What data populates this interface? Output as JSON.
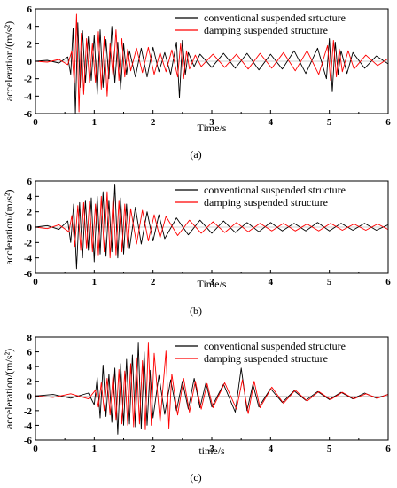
{
  "colors": {
    "conventional": "#000000",
    "damping": "#ff0000",
    "axis": "#000000",
    "background": "#ffffff"
  },
  "chart_data": [
    {
      "type": "line",
      "panel_label": "(a)",
      "xlabel": "Time/s",
      "ylabel": "acceleration/(m/s²)",
      "xlim": [
        0,
        6
      ],
      "ylim": [
        -6,
        6
      ],
      "x_ticks": [
        0,
        1,
        2,
        3,
        4,
        5,
        6
      ],
      "y_ticks": [
        -6,
        -4,
        -2,
        0,
        2,
        4,
        6
      ],
      "legend_position": "top-right",
      "series": [
        {
          "name": "conventional suspended srtucture",
          "color": "#000000",
          "x": [
            0,
            0.2,
            0.4,
            0.55,
            0.6,
            0.64,
            0.68,
            0.72,
            0.76,
            0.8,
            0.85,
            0.9,
            0.95,
            1.0,
            1.05,
            1.1,
            1.15,
            1.2,
            1.25,
            1.3,
            1.35,
            1.4,
            1.45,
            1.5,
            1.55,
            1.6,
            1.7,
            1.8,
            1.9,
            2.0,
            2.1,
            2.2,
            2.3,
            2.4,
            2.45,
            2.5,
            2.55,
            2.6,
            2.7,
            2.8,
            3.0,
            3.2,
            3.4,
            3.6,
            3.8,
            4.0,
            4.2,
            4.4,
            4.6,
            4.8,
            4.95,
            5.0,
            5.05,
            5.1,
            5.15,
            5.2,
            5.3,
            5.4,
            5.6,
            5.8,
            6.0
          ],
          "y": [
            0,
            0.1,
            -0.2,
            0.5,
            -1.5,
            3.8,
            -6.0,
            4.4,
            -3.0,
            3.5,
            -2.5,
            2.8,
            -2.2,
            3.0,
            -3.8,
            3.6,
            -3.0,
            2.5,
            -2.0,
            4.0,
            -2.5,
            2.2,
            -3.2,
            2.0,
            -1.5,
            1.2,
            -1.8,
            1.5,
            -1.8,
            1.6,
            -1.2,
            1.0,
            -1.5,
            2.2,
            -4.2,
            2.4,
            -1.5,
            1.0,
            -0.6,
            0.8,
            -0.7,
            0.9,
            -0.8,
            0.9,
            -1.0,
            0.8,
            -0.9,
            1.2,
            -1.4,
            1.5,
            -2.0,
            2.6,
            -3.5,
            2.2,
            -1.5,
            1.2,
            -1.4,
            1.0,
            -0.8,
            0.6,
            -0.3
          ]
        },
        {
          "name": "damping suspended structure",
          "color": "#ff0000",
          "x": [
            0,
            0.2,
            0.4,
            0.55,
            0.62,
            0.66,
            0.7,
            0.74,
            0.78,
            0.82,
            0.87,
            0.92,
            0.97,
            1.02,
            1.07,
            1.12,
            1.17,
            1.22,
            1.27,
            1.32,
            1.37,
            1.42,
            1.47,
            1.52,
            1.57,
            1.62,
            1.72,
            1.82,
            1.92,
            2.02,
            2.12,
            2.22,
            2.32,
            2.42,
            2.47,
            2.52,
            2.57,
            2.62,
            2.72,
            2.82,
            3.02,
            3.22,
            3.42,
            3.62,
            3.82,
            4.02,
            4.22,
            4.42,
            4.62,
            4.82,
            4.97,
            5.02,
            5.07,
            5.12,
            5.17,
            5.22,
            5.32,
            5.42,
            5.62,
            5.82,
            6.0
          ],
          "y": [
            0,
            -0.1,
            0.2,
            -0.4,
            1.2,
            -2.5,
            5.4,
            -5.8,
            3.2,
            -3.8,
            2.6,
            -2.4,
            2.0,
            -2.4,
            3.4,
            -3.2,
            2.8,
            -4.0,
            2.0,
            -1.8,
            3.6,
            -2.2,
            2.6,
            -1.8,
            1.4,
            -1.1,
            1.5,
            -1.3,
            1.6,
            -1.5,
            1.0,
            -1.2,
            1.3,
            -1.8,
            2.0,
            -2.0,
            1.2,
            -0.9,
            0.7,
            -0.6,
            0.8,
            -0.7,
            0.8,
            -0.9,
            0.9,
            -0.8,
            1.0,
            -1.1,
            1.2,
            -1.5,
            1.8,
            -2.2,
            2.4,
            -1.8,
            1.4,
            -1.2,
            1.2,
            -0.9,
            0.7,
            -0.5,
            0.3
          ]
        }
      ]
    },
    {
      "type": "line",
      "panel_label": "(b)",
      "xlabel": "Time/s",
      "ylabel": "accleration/(m/s²)",
      "xlim": [
        0,
        6
      ],
      "ylim": [
        -6,
        6
      ],
      "x_ticks": [
        0,
        1,
        2,
        3,
        4,
        5,
        6
      ],
      "y_ticks": [
        -6,
        -4,
        -2,
        0,
        2,
        4,
        6
      ],
      "legend_position": "top-right",
      "series": [
        {
          "name": "conventional suspended structure",
          "color": "#000000",
          "x": [
            0,
            0.2,
            0.4,
            0.55,
            0.6,
            0.65,
            0.7,
            0.75,
            0.8,
            0.85,
            0.9,
            0.95,
            1.0,
            1.05,
            1.1,
            1.15,
            1.2,
            1.25,
            1.3,
            1.35,
            1.4,
            1.45,
            1.5,
            1.55,
            1.6,
            1.7,
            1.8,
            1.9,
            2.0,
            2.1,
            2.2,
            2.4,
            2.6,
            2.8,
            3.0,
            3.2,
            3.4,
            3.6,
            3.8,
            4.0,
            4.2,
            4.4,
            4.6,
            4.8,
            5.0,
            5.2,
            5.4,
            5.6,
            5.8,
            6.0
          ],
          "y": [
            0,
            0.2,
            -0.3,
            0.8,
            -2.0,
            3.0,
            -5.4,
            3.2,
            -4.0,
            3.5,
            -3.0,
            3.8,
            -4.5,
            4.0,
            -3.5,
            4.6,
            -3.8,
            3.5,
            -3.2,
            5.6,
            -4.0,
            3.8,
            -3.5,
            3.0,
            -2.8,
            2.6,
            -2.2,
            2.0,
            -1.8,
            1.6,
            -1.5,
            1.2,
            -1.0,
            0.9,
            -0.8,
            0.8,
            -0.7,
            0.6,
            -0.6,
            0.6,
            -0.5,
            0.5,
            -0.5,
            0.6,
            -0.5,
            0.5,
            -0.4,
            0.5,
            -0.4,
            0.3
          ]
        },
        {
          "name": "damping suspended structure",
          "color": "#ff0000",
          "x": [
            0,
            0.2,
            0.4,
            0.57,
            0.62,
            0.67,
            0.72,
            0.77,
            0.82,
            0.87,
            0.92,
            0.97,
            1.02,
            1.07,
            1.12,
            1.17,
            1.22,
            1.27,
            1.32,
            1.37,
            1.42,
            1.47,
            1.52,
            1.57,
            1.62,
            1.72,
            1.82,
            1.92,
            2.02,
            2.12,
            2.22,
            2.42,
            2.62,
            2.82,
            3.02,
            3.22,
            3.42,
            3.62,
            3.82,
            4.02,
            4.22,
            4.42,
            4.62,
            4.82,
            5.02,
            5.22,
            5.42,
            5.62,
            5.82,
            6.0
          ],
          "y": [
            0,
            -0.2,
            0.3,
            -0.6,
            1.5,
            -2.5,
            2.8,
            -3.0,
            3.2,
            -2.8,
            3.4,
            -3.2,
            3.0,
            -3.6,
            4.0,
            -3.2,
            4.6,
            -4.0,
            4.0,
            -3.6,
            3.5,
            -3.2,
            3.0,
            -2.6,
            2.4,
            -2.2,
            2.2,
            -1.8,
            1.6,
            -1.4,
            1.4,
            -1.1,
            0.9,
            -0.8,
            0.7,
            -0.7,
            0.6,
            -0.6,
            0.5,
            -0.5,
            0.5,
            -0.5,
            0.4,
            -0.5,
            0.5,
            -0.4,
            0.4,
            -0.4,
            0.4,
            -0.3
          ]
        }
      ]
    },
    {
      "type": "line",
      "panel_label": "(c)",
      "xlabel": "time/s",
      "ylabel": "acceleration/(m/s²)",
      "xlim": [
        0,
        6
      ],
      "ylim": [
        -6,
        8
      ],
      "x_ticks": [
        0,
        1,
        2,
        3,
        4,
        5,
        6
      ],
      "y_ticks": [
        -6,
        -4,
        -2,
        0,
        2,
        4,
        6,
        8
      ],
      "legend_position": "top-right",
      "series": [
        {
          "name": "conventional suspended structure",
          "color": "#000000",
          "x": [
            0,
            0.3,
            0.6,
            0.9,
            1.0,
            1.05,
            1.1,
            1.15,
            1.2,
            1.25,
            1.3,
            1.35,
            1.4,
            1.45,
            1.5,
            1.55,
            1.6,
            1.65,
            1.7,
            1.75,
            1.8,
            1.85,
            1.9,
            1.95,
            2.0,
            2.1,
            2.2,
            2.3,
            2.4,
            2.5,
            2.6,
            2.7,
            2.8,
            2.9,
            3.0,
            3.2,
            3.4,
            3.5,
            3.6,
            3.7,
            3.8,
            4.0,
            4.2,
            4.4,
            4.6,
            4.8,
            5.0,
            5.2,
            5.4,
            5.6,
            5.8,
            6.0
          ],
          "y": [
            0,
            0.2,
            -0.3,
            0.4,
            -1.2,
            2.5,
            -3.0,
            4.2,
            -2.8,
            3.0,
            -3.6,
            3.8,
            -5.2,
            4.4,
            -4.0,
            5.0,
            -3.8,
            5.6,
            -4.2,
            7.2,
            -4.5,
            6.0,
            -4.0,
            3.5,
            -3.0,
            2.8,
            -2.5,
            2.2,
            -2.0,
            2.0,
            -1.8,
            2.4,
            -1.6,
            1.8,
            -1.5,
            1.6,
            -2.2,
            3.8,
            -2.0,
            1.6,
            -1.5,
            1.0,
            -0.9,
            0.7,
            -0.6,
            0.6,
            -0.5,
            0.5,
            -0.4,
            0.4,
            -0.3,
            0.2
          ]
        },
        {
          "name": "damping suspended structure",
          "color": "#ff0000",
          "x": [
            0,
            0.3,
            0.6,
            0.9,
            1.02,
            1.07,
            1.12,
            1.17,
            1.22,
            1.27,
            1.32,
            1.37,
            1.42,
            1.47,
            1.52,
            1.57,
            1.62,
            1.67,
            1.72,
            1.77,
            1.82,
            1.87,
            1.92,
            1.97,
            2.02,
            2.12,
            2.22,
            2.27,
            2.32,
            2.42,
            2.52,
            2.62,
            2.72,
            2.82,
            2.92,
            3.02,
            3.22,
            3.42,
            3.52,
            3.62,
            3.72,
            3.82,
            4.02,
            4.22,
            4.42,
            4.62,
            4.82,
            5.02,
            5.22,
            5.42,
            5.62,
            5.82,
            6.0
          ],
          "y": [
            0,
            -0.2,
            0.3,
            -0.4,
            0.8,
            -1.5,
            1.8,
            -2.0,
            2.4,
            -2.6,
            3.0,
            -3.2,
            3.6,
            -3.8,
            3.4,
            -4.0,
            4.4,
            -4.2,
            5.2,
            -3.8,
            4.8,
            -4.6,
            7.2,
            -4.0,
            5.8,
            -3.6,
            6.1,
            -4.4,
            3.0,
            -2.6,
            2.4,
            -2.2,
            2.0,
            -1.8,
            1.7,
            -1.6,
            1.8,
            -1.8,
            2.2,
            -2.4,
            2.0,
            -1.6,
            1.2,
            -1.0,
            0.8,
            -0.7,
            0.6,
            -0.5,
            0.5,
            -0.4,
            0.3,
            -0.3,
            0.2
          ]
        }
      ]
    }
  ]
}
